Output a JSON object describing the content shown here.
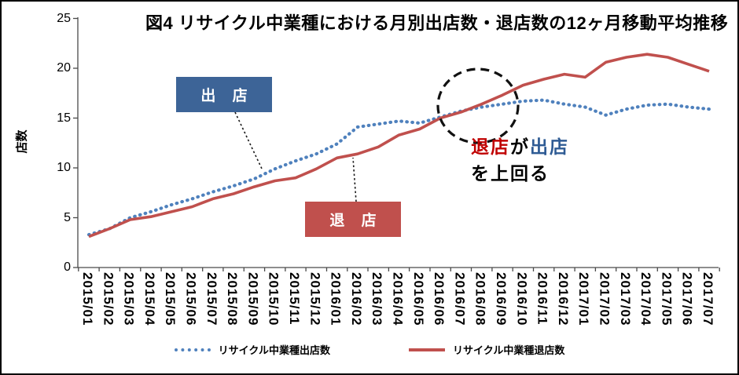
{
  "chart": {
    "title": "図4 リサイクル中業種における月別出店数・退店数の12ヶ月移動平均推移",
    "y_axis_label": "店数"
  },
  "callouts": {
    "openings_label": "出 店",
    "closings_label": "退 店"
  },
  "annotation": {
    "closings": "退店",
    "connector": "が",
    "openings": "出店",
    "line2": "を上回る"
  },
  "legend": [
    {
      "label": "リサイクル中業種出店数",
      "style": "dotted"
    },
    {
      "label": "リサイクル中業種退店数",
      "style": "solid"
    }
  ],
  "colors": {
    "openings_line": "#4F81BD",
    "closings_line": "#C0504D",
    "openings_box": "#3D6497",
    "closings_box": "#C0504D",
    "annotation_red": "#C00000",
    "annotation_blue": "#2E5B94",
    "axis": "#4a4a4a",
    "circle": "#111111"
  },
  "chart_data": {
    "type": "line",
    "title": "図4 リサイクル中業種における月別出店数・退店数の12ヶ月移動平均推移",
    "xlabel": "",
    "ylabel": "店数",
    "ylim": [
      0,
      25
    ],
    "y_ticks": [
      0,
      5,
      10,
      15,
      20,
      25
    ],
    "grid": false,
    "legend_position": "bottom",
    "categories": [
      "2015/01",
      "2015/02",
      "2015/03",
      "2015/04",
      "2015/05",
      "2015/06",
      "2015/07",
      "2015/08",
      "2015/09",
      "2015/10",
      "2015/11",
      "2015/12",
      "2016/01",
      "2016/02",
      "2016/03",
      "2016/04",
      "2016/05",
      "2016/06",
      "2016/07",
      "2016/08",
      "2016/09",
      "2016/10",
      "2016/11",
      "2016/12",
      "2017/01",
      "2017/02",
      "2017/03",
      "2017/04",
      "2017/05",
      "2017/06",
      "2017/07"
    ],
    "series": [
      {
        "name": "リサイクル中業種出店数",
        "color": "#4F81BD",
        "line_style": "dotted",
        "values": [
          3.3,
          3.9,
          5.0,
          5.6,
          6.3,
          6.9,
          7.6,
          8.2,
          8.9,
          9.9,
          10.7,
          11.4,
          12.4,
          14.1,
          14.4,
          14.7,
          14.5,
          15.1,
          15.7,
          16.1,
          16.4,
          16.7,
          16.8,
          16.4,
          16.1,
          15.3,
          15.9,
          16.3,
          16.4,
          16.1,
          15.9
        ]
      },
      {
        "name": "リサイクル中業種退店数",
        "color": "#C0504D",
        "line_style": "solid",
        "values": [
          3.1,
          3.9,
          4.8,
          5.1,
          5.6,
          6.1,
          6.9,
          7.4,
          8.1,
          8.7,
          9.0,
          9.9,
          11.0,
          11.4,
          12.1,
          13.3,
          13.9,
          15.0,
          15.6,
          16.4,
          17.3,
          18.3,
          18.9,
          19.4,
          19.1,
          20.6,
          21.1,
          21.4,
          21.1,
          20.4,
          19.7
        ]
      }
    ],
    "annotations": [
      {
        "type": "ellipse",
        "label": "crossover-highlight",
        "x_range": [
          "2016/06",
          "2016/09"
        ],
        "y_range": [
          13.0,
          20.0
        ]
      },
      {
        "type": "text",
        "text": "退店が出店を上回る"
      }
    ]
  }
}
